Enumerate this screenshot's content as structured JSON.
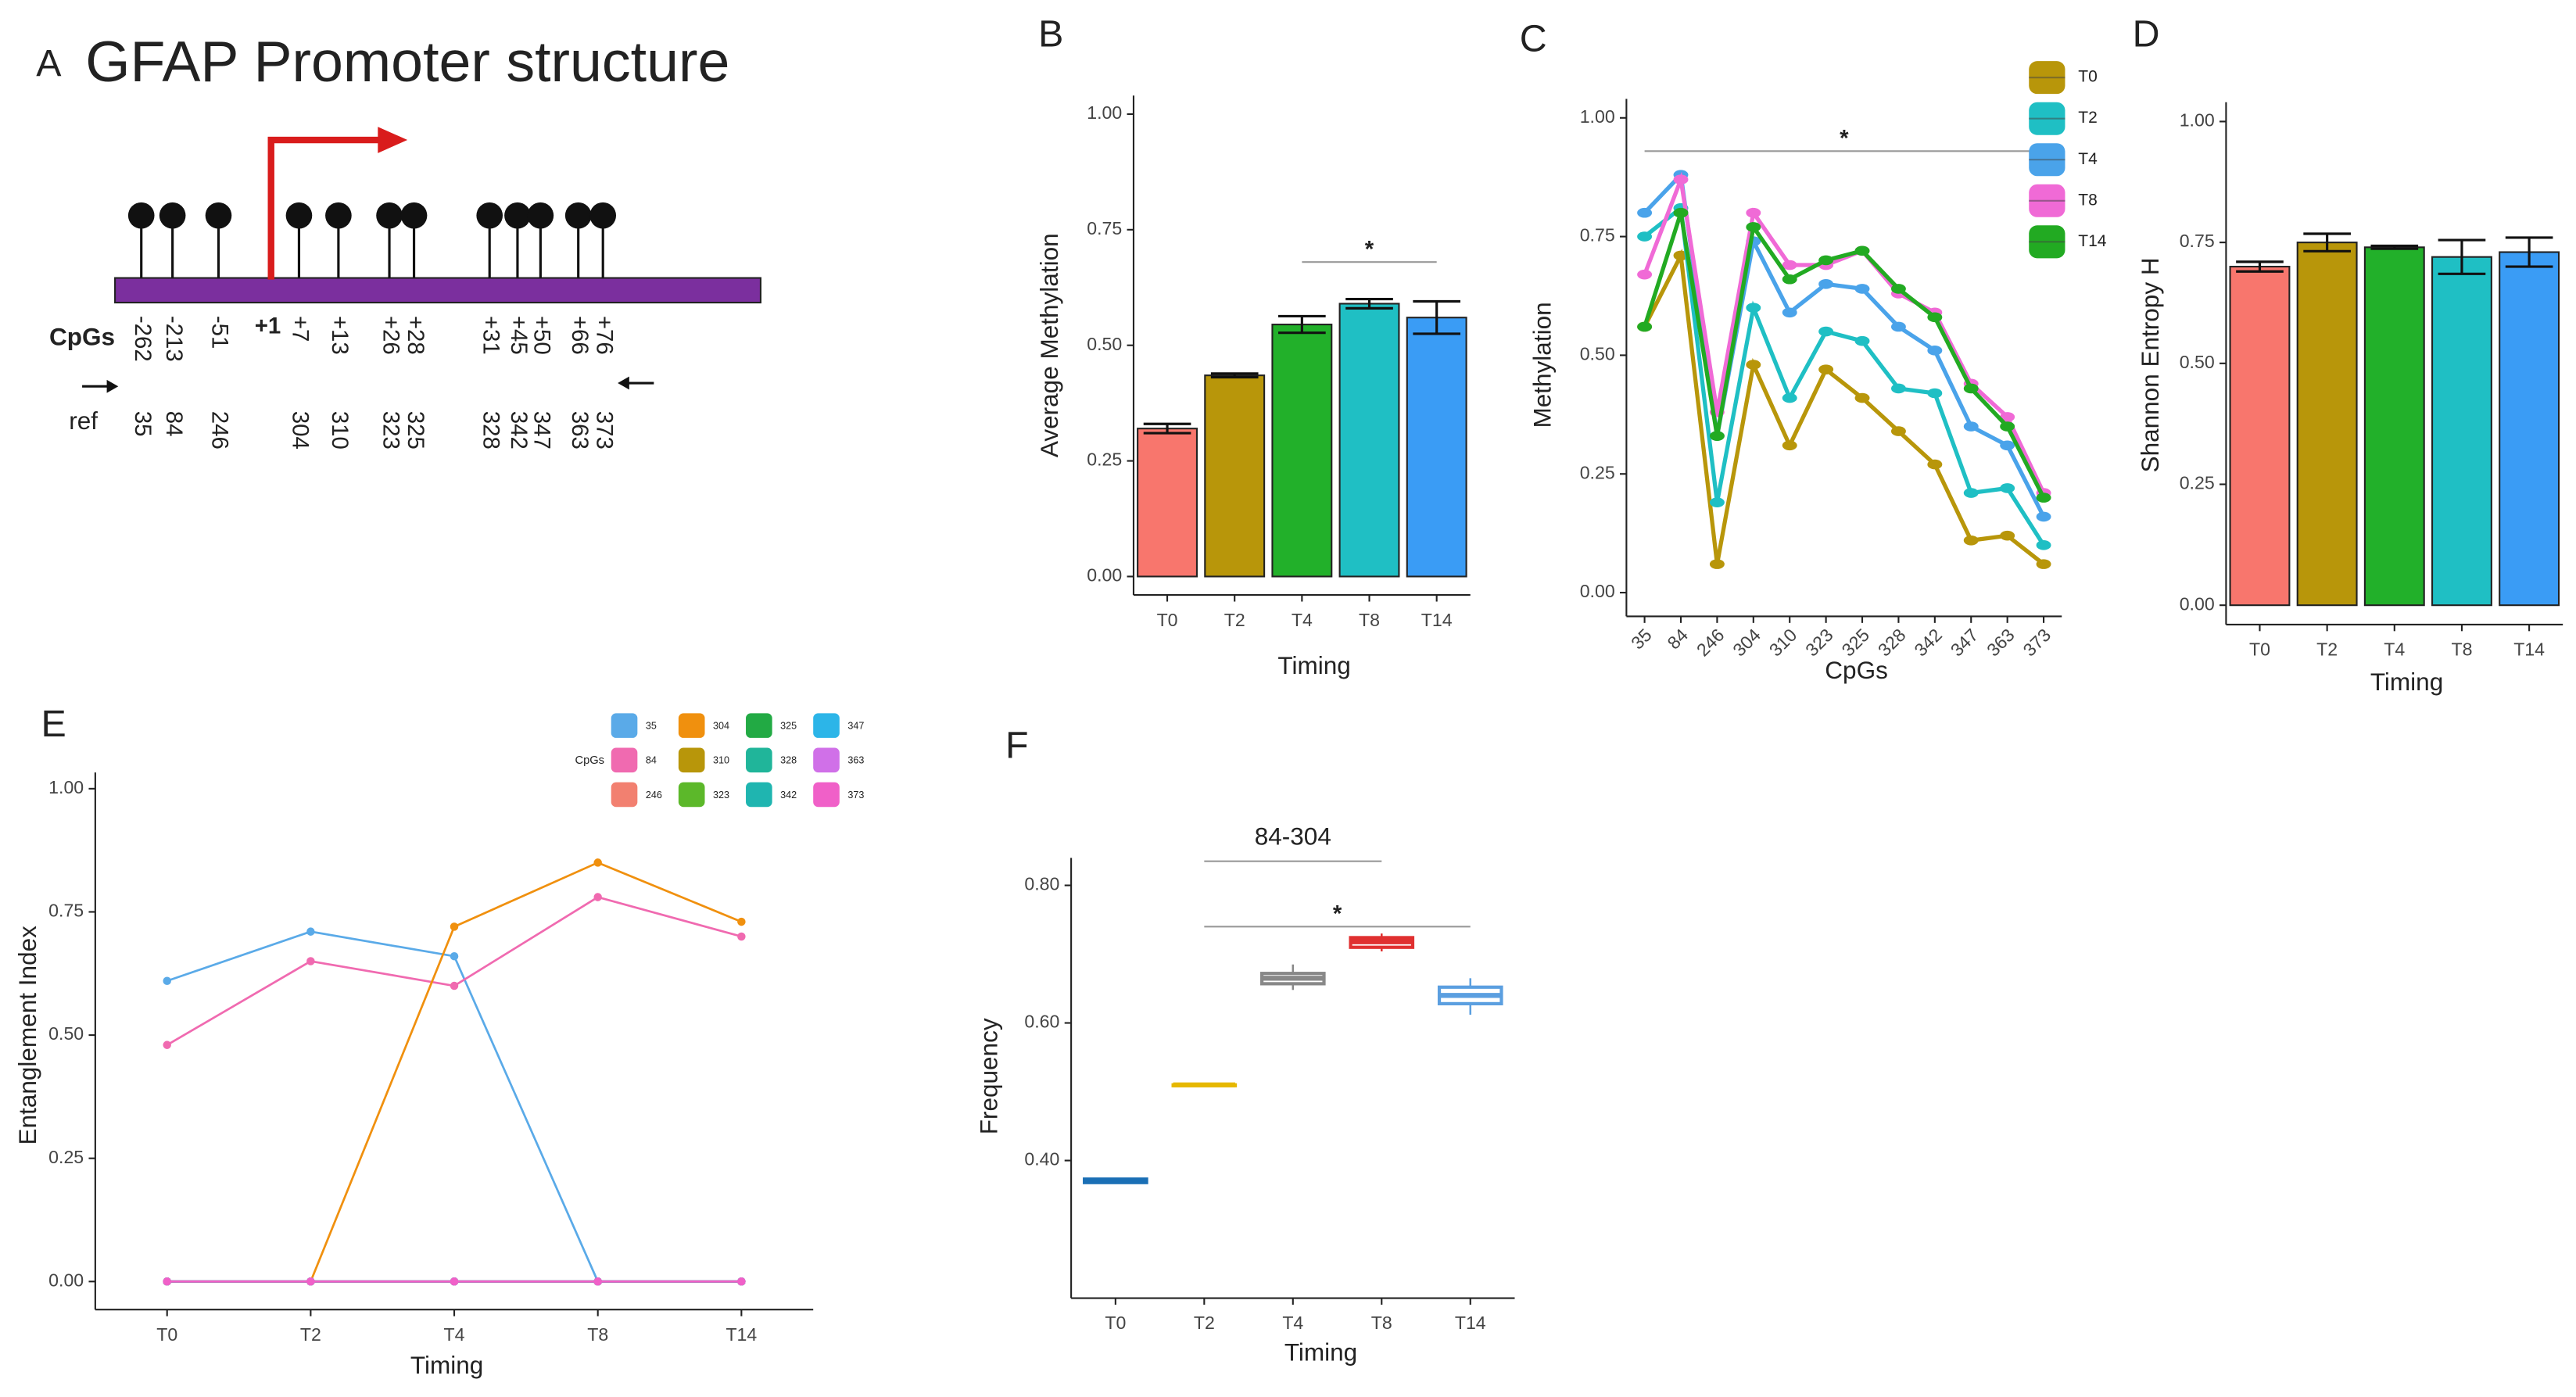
{
  "panel_a": {
    "label": "A",
    "title": "GFAP Promoter structure",
    "cpg_heading": "CpGs",
    "ref_heading": "ref",
    "tss": "+1",
    "cpg_positions": [
      "-262",
      "-213",
      "-51",
      "+7",
      "+13",
      "+26",
      "+28",
      "+31",
      "+45",
      "+50",
      "+66",
      "+76"
    ],
    "ref_positions": [
      "35",
      "84",
      "246",
      "304",
      "310",
      "323",
      "325",
      "328",
      "342",
      "347",
      "363",
      "373"
    ]
  },
  "chart_data": [
    {
      "type": "bar",
      "label": "B",
      "x_label": "Timing",
      "y_label": "Average Methylation",
      "categories": [
        "T0",
        "T2",
        "T4",
        "T8",
        "T14"
      ],
      "values": [
        0.32,
        0.435,
        0.545,
        0.59,
        0.56
      ],
      "errors": [
        0.01,
        0.004,
        0.018,
        0.01,
        0.035
      ],
      "colors": [
        "#f8766d",
        "#b8960a",
        "#22b02a",
        "#1fbfc4",
        "#3a9cf5"
      ],
      "ylim": [
        -0.04,
        1.04
      ],
      "yticks": [
        {
          "value": 0,
          "label": "0.00"
        },
        {
          "value": 0.25,
          "label": "0.25"
        },
        {
          "value": 0.5,
          "label": "0.50"
        },
        {
          "value": 0.75,
          "label": "0.75"
        },
        {
          "value": 1,
          "label": "1.00"
        }
      ],
      "annotations": [
        {
          "text": "*",
          "from": "T4",
          "to": "T14",
          "y": 0.68
        }
      ]
    },
    {
      "type": "line",
      "label": "C",
      "x_label": "CpGs",
      "y_label": "Methylation",
      "categories": [
        "35",
        "84",
        "246",
        "304",
        "310",
        "323",
        "325",
        "328",
        "342",
        "347",
        "363",
        "373"
      ],
      "series": [
        {
          "name": "T0",
          "color": "#b8960a",
          "values": [
            0.56,
            0.71,
            0.06,
            0.48,
            0.31,
            0.47,
            0.41,
            0.34,
            0.27,
            0.11,
            0.12,
            0.06
          ]
        },
        {
          "name": "T2",
          "color": "#1fbfc4",
          "values": [
            0.75,
            0.81,
            0.19,
            0.6,
            0.41,
            0.55,
            0.53,
            0.43,
            0.42,
            0.21,
            0.22,
            0.1
          ]
        },
        {
          "name": "T4",
          "color": "#4aa3ea",
          "values": [
            0.8,
            0.88,
            0.33,
            0.74,
            0.59,
            0.65,
            0.64,
            0.56,
            0.51,
            0.35,
            0.31,
            0.16
          ]
        },
        {
          "name": "T8",
          "color": "#f06ad6",
          "values": [
            0.67,
            0.87,
            0.38,
            0.8,
            0.69,
            0.69,
            0.72,
            0.63,
            0.59,
            0.44,
            0.37,
            0.21
          ]
        },
        {
          "name": "T14",
          "color": "#22aa22",
          "values": [
            0.56,
            0.8,
            0.33,
            0.77,
            0.66,
            0.7,
            0.72,
            0.64,
            0.58,
            0.43,
            0.35,
            0.2
          ]
        }
      ],
      "ylim": [
        -0.05,
        1.04
      ],
      "yticks": [
        {
          "value": 0,
          "label": "0.00"
        },
        {
          "value": 0.25,
          "label": "0.25"
        },
        {
          "value": 0.5,
          "label": "0.50"
        },
        {
          "value": 0.75,
          "label": "0.75"
        },
        {
          "value": 1,
          "label": "1.00"
        }
      ],
      "annotations": [
        {
          "text": "*",
          "from": "35",
          "to": "373",
          "y": 0.93
        }
      ]
    },
    {
      "type": "bar",
      "label": "D",
      "x_label": "Timing",
      "y_label": "Shannon Entropy H",
      "categories": [
        "T0",
        "T2",
        "T4",
        "T8",
        "T14"
      ],
      "values": [
        0.7,
        0.75,
        0.74,
        0.72,
        0.73
      ],
      "errors": [
        0.01,
        0.018,
        0.003,
        0.035,
        0.03
      ],
      "colors": [
        "#f8766d",
        "#b8960a",
        "#22b02a",
        "#1fbfc4",
        "#3a9cf5"
      ],
      "ylim": [
        -0.04,
        1.04
      ],
      "yticks": [
        {
          "value": 0,
          "label": "0.00"
        },
        {
          "value": 0.25,
          "label": "0.25"
        },
        {
          "value": 0.5,
          "label": "0.50"
        },
        {
          "value": 0.75,
          "label": "0.75"
        },
        {
          "value": 1,
          "label": "1.00"
        }
      ]
    },
    {
      "type": "line",
      "label": "E",
      "x_label": "Timing",
      "y_label": "Entanglement Index",
      "legend_title": "CpGs",
      "categories": [
        "T0",
        "T2",
        "T4",
        "T8",
        "T14"
      ],
      "series": [
        {
          "name": "35",
          "color": "#5aaae8",
          "values": [
            0.61,
            0.71,
            0.66,
            0,
            0
          ]
        },
        {
          "name": "84",
          "color": "#f06ab0",
          "values": [
            0.48,
            0.65,
            0.6,
            0.78,
            0.7
          ]
        },
        {
          "name": "246",
          "color": "#f28070",
          "values": [
            0,
            0,
            0,
            0,
            0
          ]
        },
        {
          "name": "304",
          "color": "#f0900e",
          "values": [
            0,
            0,
            0.72,
            0.85,
            0.73
          ]
        },
        {
          "name": "310",
          "color": "#b8960a",
          "values": [
            0,
            0,
            0,
            0,
            0
          ]
        },
        {
          "name": "323",
          "color": "#5cb82a",
          "values": [
            0,
            0,
            0,
            0,
            0
          ]
        },
        {
          "name": "325",
          "color": "#22aa44",
          "values": [
            0,
            0,
            0,
            0,
            0
          ]
        },
        {
          "name": "328",
          "color": "#20b59a",
          "values": [
            0,
            0,
            0,
            0,
            0
          ]
        },
        {
          "name": "342",
          "color": "#1fb5b0",
          "values": [
            0,
            0,
            0,
            0,
            0
          ]
        },
        {
          "name": "347",
          "color": "#2cb5e8",
          "values": [
            0,
            0,
            0,
            0,
            0
          ]
        },
        {
          "name": "363",
          "color": "#d070e8",
          "values": [
            0,
            0,
            0,
            0,
            0
          ]
        },
        {
          "name": "373",
          "color": "#f060c8",
          "values": [
            0,
            0,
            0,
            0,
            0
          ]
        }
      ],
      "ylim": [
        -0.057,
        1.033
      ],
      "yticks": [
        {
          "value": 0,
          "label": "0.00"
        },
        {
          "value": 0.25,
          "label": "0.25"
        },
        {
          "value": 0.5,
          "label": "0.50"
        },
        {
          "value": 0.75,
          "label": "0.75"
        },
        {
          "value": 1,
          "label": "1.00"
        }
      ]
    },
    {
      "type": "box",
      "label": "F",
      "x_label": "Timing",
      "y_label": "Frequency",
      "categories": [
        "T0",
        "T2",
        "T4",
        "T8",
        "T14"
      ],
      "boxes": [
        {
          "min": 0.367,
          "q1": 0.368,
          "median": 0.37,
          "q3": 0.373,
          "max": 0.375
        },
        {
          "min": 0.51,
          "q1": 0.51,
          "median": 0.51,
          "q3": 0.51,
          "max": 0.51
        },
        {
          "min": 0.648,
          "q1": 0.657,
          "median": 0.665,
          "q3": 0.672,
          "max": 0.685
        },
        {
          "min": 0.704,
          "q1": 0.71,
          "median": 0.718,
          "q3": 0.724,
          "max": 0.73
        },
        {
          "min": 0.612,
          "q1": 0.628,
          "median": 0.64,
          "q3": 0.652,
          "max": 0.665
        }
      ],
      "colors": [
        "#1a6fb5",
        "#e6b800",
        "#888888",
        "#e03030",
        "#5b9fe0"
      ],
      "ylim": [
        0.2,
        0.84
      ],
      "yticks": [
        {
          "value": 0.4,
          "label": "0.40"
        },
        {
          "value": 0.6,
          "label": "0.60"
        },
        {
          "value": 0.8,
          "label": "0.80"
        }
      ],
      "annotations": [
        {
          "text": "84-304",
          "from": "T2",
          "to": "T8",
          "y": 0.835
        },
        {
          "text": "*",
          "from": "T2",
          "to": "T14",
          "y": 0.74
        }
      ]
    }
  ]
}
